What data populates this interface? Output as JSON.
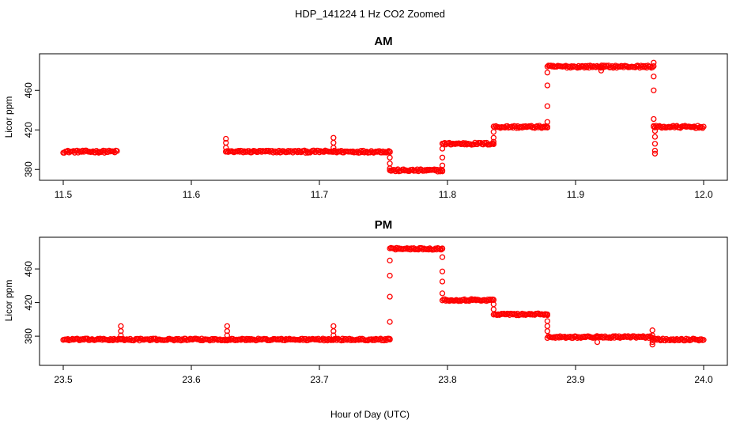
{
  "title": "HDP_141224  1 Hz CO2 Zoomed",
  "xlabel": "Hour of Day (UTC)",
  "chart_data": [
    {
      "type": "scatter",
      "title": "AM",
      "ylabel": "Licor ppm",
      "xlim": [
        11.5,
        12.0
      ],
      "ylim": [
        373,
        493
      ],
      "xticks": [
        "11.5",
        "11.6",
        "11.7",
        "11.8",
        "11.9",
        "12.0"
      ],
      "yticks": [
        "380",
        "420",
        "460"
      ],
      "marker": "circle-open",
      "color": "#ff0000",
      "segments": [
        {
          "x": [
            11.5,
            11.542
          ],
          "y": 398
        },
        {
          "x": [
            11.627,
            11.755
          ],
          "y": 398
        },
        {
          "x": [
            11.755,
            11.796
          ],
          "y": 379
        },
        {
          "x": [
            11.796,
            11.836
          ],
          "y": 406
        },
        {
          "x": [
            11.836,
            11.878
          ],
          "y": 423
        },
        {
          "x": [
            11.878,
            11.961
          ],
          "y": 484
        },
        {
          "x": [
            11.961,
            12.0
          ],
          "y": 423
        }
      ],
      "spikes": [
        {
          "x": 11.627,
          "y": [
            398,
            402,
            407,
            411
          ]
        },
        {
          "x": 11.711,
          "y": [
            398,
            402,
            407,
            412
          ]
        },
        {
          "x": 11.755,
          "y": [
            398,
            392,
            386,
            381
          ]
        },
        {
          "x": 11.796,
          "y": [
            379,
            384,
            392,
            401
          ]
        },
        {
          "x": 11.836,
          "y": [
            406,
            408,
            412,
            418
          ]
        },
        {
          "x": 11.878,
          "y": [
            423,
            428,
            444,
            465,
            478
          ]
        },
        {
          "x": 11.92,
          "y": [
            484,
            480
          ]
        },
        {
          "x": 11.961,
          "y": [
            488,
            474,
            460,
            431,
            424
          ]
        },
        {
          "x": 11.962,
          "y": [
            419,
            413,
            406,
            399,
            396
          ]
        }
      ]
    },
    {
      "type": "scatter",
      "title": "PM",
      "ylabel": "Licor ppm",
      "xlim": [
        23.5,
        24.0
      ],
      "ylim": [
        350,
        493
      ],
      "xticks": [
        "23.5",
        "23.6",
        "23.7",
        "23.8",
        "23.9",
        "24.0"
      ],
      "yticks": [
        "380",
        "420",
        "460"
      ],
      "marker": "circle-open",
      "color": "#ff0000",
      "segments": [
        {
          "x": [
            23.5,
            23.755
          ],
          "y": 376
        },
        {
          "x": [
            23.755,
            23.796
          ],
          "y": 484
        },
        {
          "x": [
            23.796,
            23.836
          ],
          "y": 423
        },
        {
          "x": [
            23.836,
            23.878
          ],
          "y": 406
        },
        {
          "x": [
            23.878,
            23.96
          ],
          "y": 379
        },
        {
          "x": [
            23.96,
            24.0
          ],
          "y": 376
        }
      ],
      "spikes": [
        {
          "x": 23.545,
          "y": [
            376,
            381,
            386,
            392
          ]
        },
        {
          "x": 23.628,
          "y": [
            376,
            381,
            386,
            392
          ]
        },
        {
          "x": 23.711,
          "y": [
            376,
            381,
            386,
            392
          ]
        },
        {
          "x": 23.755,
          "y": [
            376,
            397,
            427,
            452,
            470
          ]
        },
        {
          "x": 23.796,
          "y": [
            484,
            474,
            457,
            445,
            431
          ]
        },
        {
          "x": 23.836,
          "y": [
            423,
            418,
            412
          ]
        },
        {
          "x": 23.878,
          "y": [
            406,
            398,
            392,
            386
          ]
        },
        {
          "x": 23.917,
          "y": [
            379,
            373
          ]
        },
        {
          "x": 23.96,
          "y": [
            370,
            373,
            381,
            387
          ]
        }
      ]
    }
  ]
}
